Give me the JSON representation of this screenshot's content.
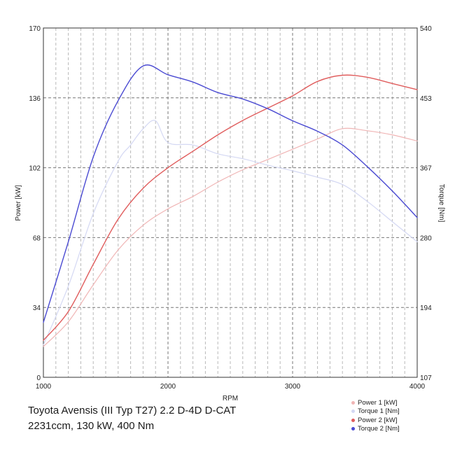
{
  "chart_data": {
    "type": "line",
    "title": "",
    "xlabel": "RPM",
    "ylabel_left": "Power [kW]",
    "ylabel_right": "Torque [Nm]",
    "xlim": [
      1000,
      4000
    ],
    "ylim_left": [
      0,
      170
    ],
    "ylim_right": [
      107,
      540
    ],
    "x_ticks": [
      "1000",
      "2000",
      "3000",
      "4000"
    ],
    "y_ticks_left": [
      "0",
      "34",
      "68",
      "102",
      "136",
      "170"
    ],
    "y_ticks_right": [
      "107",
      "194",
      "280",
      "367",
      "453",
      "540"
    ],
    "grid": true,
    "legend_position": "bottom-right",
    "series": [
      {
        "name": "Power 1 [kW]",
        "axis": "left",
        "color": "#f0b5b5",
        "width": 1.2,
        "points": [
          [
            1000,
            15
          ],
          [
            1200,
            27
          ],
          [
            1400,
            45
          ],
          [
            1600,
            62
          ],
          [
            1800,
            74
          ],
          [
            2000,
            82
          ],
          [
            2200,
            88
          ],
          [
            2400,
            95
          ],
          [
            2600,
            101
          ],
          [
            2800,
            106
          ],
          [
            3000,
            111
          ],
          [
            3200,
            116
          ],
          [
            3400,
            121
          ],
          [
            3600,
            120
          ],
          [
            3800,
            118
          ],
          [
            4000,
            115
          ]
        ]
      },
      {
        "name": "Torque 1 [Nm]",
        "axis": "right",
        "color": "#d4d8f3",
        "width": 1.2,
        "points": [
          [
            1000,
            147
          ],
          [
            1200,
            220
          ],
          [
            1400,
            310
          ],
          [
            1600,
            375
          ],
          [
            1700,
            395
          ],
          [
            1800,
            415
          ],
          [
            1900,
            425
          ],
          [
            2000,
            398
          ],
          [
            2200,
            395
          ],
          [
            2400,
            384
          ],
          [
            2600,
            378
          ],
          [
            2800,
            370
          ],
          [
            3000,
            363
          ],
          [
            3200,
            355
          ],
          [
            3400,
            346
          ],
          [
            3600,
            325
          ],
          [
            3800,
            300
          ],
          [
            4000,
            275
          ]
        ]
      },
      {
        "name": "Power 2 [kW]",
        "axis": "left",
        "color": "#e05d5d",
        "width": 1.4,
        "points": [
          [
            1000,
            18
          ],
          [
            1200,
            32
          ],
          [
            1400,
            55
          ],
          [
            1600,
            77
          ],
          [
            1800,
            92
          ],
          [
            2000,
            102
          ],
          [
            2200,
            110
          ],
          [
            2400,
            118
          ],
          [
            2600,
            125
          ],
          [
            2800,
            131
          ],
          [
            3000,
            137
          ],
          [
            3200,
            144
          ],
          [
            3400,
            147
          ],
          [
            3600,
            146
          ],
          [
            3800,
            143
          ],
          [
            4000,
            140
          ]
        ]
      },
      {
        "name": "Torque 2 [Nm]",
        "axis": "right",
        "color": "#4a4ad2",
        "width": 1.4,
        "points": [
          [
            1000,
            175
          ],
          [
            1200,
            275
          ],
          [
            1400,
            380
          ],
          [
            1600,
            450
          ],
          [
            1800,
            493
          ],
          [
            2000,
            482
          ],
          [
            2200,
            473
          ],
          [
            2400,
            460
          ],
          [
            2600,
            452
          ],
          [
            2800,
            440
          ],
          [
            3000,
            425
          ],
          [
            3200,
            412
          ],
          [
            3400,
            395
          ],
          [
            3600,
            368
          ],
          [
            3800,
            338
          ],
          [
            4000,
            305
          ]
        ]
      }
    ]
  },
  "caption": {
    "line1": "Toyota Avensis (III Typ T27) 2.2 D-4D D-CAT",
    "line2": "2231ccm, 130 kW, 400 Nm"
  }
}
